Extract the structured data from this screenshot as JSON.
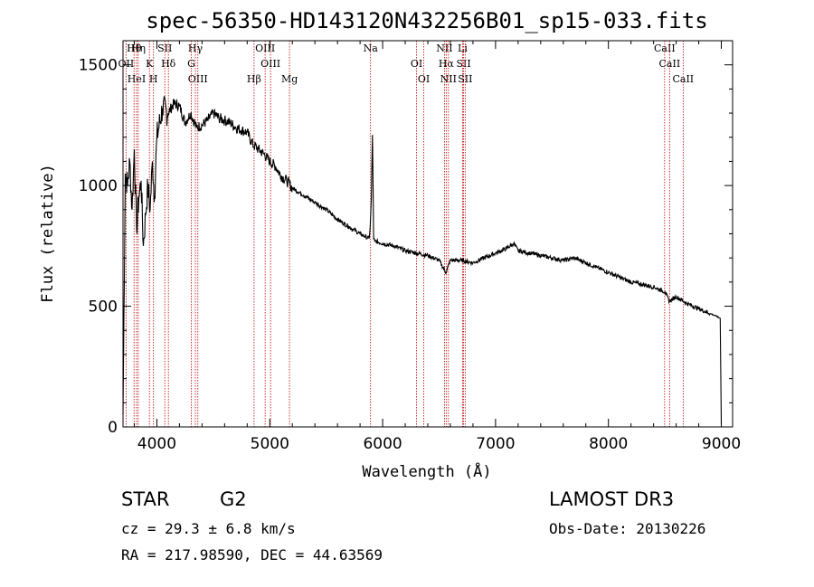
{
  "chart_data": {
    "type": "line",
    "title": "spec-56350-HD143120N432256B01_sp15-033.fits",
    "xlabel": "Wavelength (Å)",
    "ylabel": "Flux (relative)",
    "xlim": [
      3700,
      9100
    ],
    "ylim": [
      0,
      1600
    ],
    "x_ticks": [
      4000,
      5000,
      6000,
      7000,
      8000,
      9000
    ],
    "y_ticks": [
      0,
      500,
      1000,
      1500
    ],
    "series": [
      {
        "name": "spectrum",
        "x": [
          3700,
          3720,
          3740,
          3760,
          3780,
          3800,
          3820,
          3840,
          3860,
          3880,
          3900,
          3920,
          3940,
          3960,
          3980,
          4000,
          4050,
          4100,
          4150,
          4200,
          4250,
          4300,
          4350,
          4400,
          4450,
          4500,
          4550,
          4600,
          4650,
          4700,
          4750,
          4800,
          4850,
          4900,
          4950,
          5000,
          5050,
          5100,
          5150,
          5200,
          5300,
          5400,
          5500,
          5600,
          5700,
          5800,
          5880,
          5890,
          5900,
          5910,
          5920,
          5930,
          6000,
          6100,
          6200,
          6300,
          6400,
          6500,
          6560,
          6600,
          6700,
          6800,
          6900,
          7000,
          7100,
          7160,
          7200,
          7300,
          7400,
          7500,
          7600,
          7700,
          7800,
          7900,
          8000,
          8100,
          8200,
          8300,
          8400,
          8500,
          8540,
          8600,
          8700,
          8800,
          8900,
          8950,
          8990,
          9000
        ],
        "y": [
          50,
          1050,
          1000,
          1100,
          900,
          1150,
          820,
          950,
          1020,
          750,
          880,
          1000,
          900,
          1100,
          950,
          1200,
          1320,
          1300,
          1340,
          1330,
          1260,
          1300,
          1240,
          1250,
          1270,
          1300,
          1280,
          1270,
          1260,
          1240,
          1230,
          1220,
          1170,
          1150,
          1130,
          1100,
          1080,
          1040,
          1020,
          990,
          960,
          930,
          900,
          860,
          830,
          800,
          780,
          830,
          950,
          1210,
          780,
          770,
          760,
          750,
          730,
          720,
          710,
          690,
          640,
          690,
          690,
          680,
          700,
          720,
          740,
          760,
          730,
          720,
          710,
          700,
          690,
          700,
          680,
          660,
          640,
          620,
          600,
          590,
          580,
          560,
          520,
          540,
          510,
          490,
          470,
          460,
          450,
          10
        ]
      }
    ],
    "annotation_lines": [
      {
        "label": "Hθ",
        "x": 3798
      },
      {
        "label": "OII",
        "x": 3727
      },
      {
        "label": "HeI",
        "x": 3820
      },
      {
        "label": "Hη",
        "x": 3835
      },
      {
        "label": "K",
        "x": 3934
      },
      {
        "label": "H",
        "x": 3970
      },
      {
        "label": "SII",
        "x": 4070
      },
      {
        "label": "Hδ",
        "x": 4102
      },
      {
        "label": "OIII",
        "x": 4363
      },
      {
        "label": "Hγ",
        "x": 4341
      },
      {
        "label": "G",
        "x": 4305
      },
      {
        "label": "Hβ",
        "x": 4861
      },
      {
        "label": "OIII",
        "x": 4959
      },
      {
        "label": "OIII",
        "x": 5007
      },
      {
        "label": "Mg",
        "x": 5175
      },
      {
        "label": "Na",
        "x": 5893
      },
      {
        "label": "OI",
        "x": 6300
      },
      {
        "label": "OI",
        "x": 6364
      },
      {
        "label": "NII",
        "x": 6548
      },
      {
        "label": "Hα",
        "x": 6563
      },
      {
        "label": "NII",
        "x": 6583
      },
      {
        "label": "Li",
        "x": 6708
      },
      {
        "label": "SII",
        "x": 6717
      },
      {
        "label": "SII",
        "x": 6731
      },
      {
        "label": "CaII",
        "x": 8498
      },
      {
        "label": "CaII",
        "x": 8542
      },
      {
        "label": "CaII",
        "x": 8662
      }
    ]
  },
  "info": {
    "object_class": "STAR",
    "subclass": "G2",
    "survey": "LAMOST DR3",
    "redshift_line": "cz = 29.3 ± 6.8 km/s",
    "obs_date": "Obs-Date: 20130226",
    "coords": "RA = 217.98590, DEC =  44.63569"
  },
  "colors": {
    "spectrum": "#000000",
    "line_markers": "#c00000",
    "axes": "#000000",
    "background": "#ffffff"
  }
}
